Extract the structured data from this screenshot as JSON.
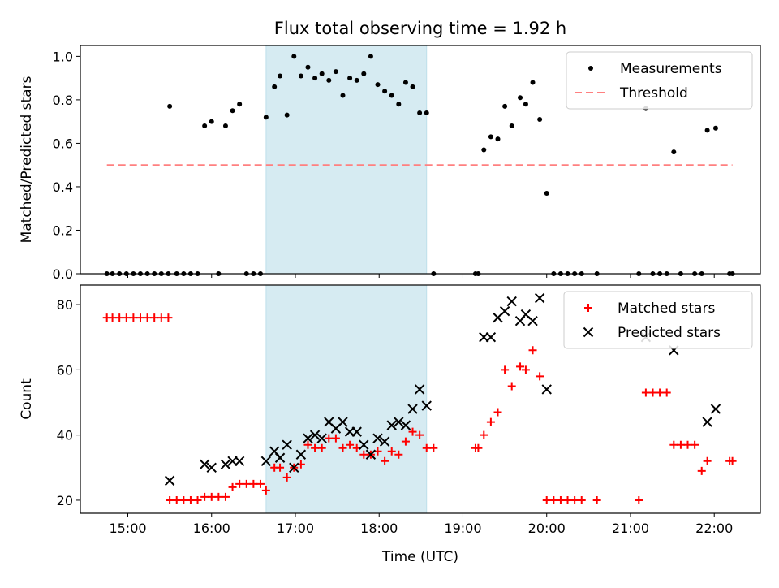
{
  "figure": {
    "title": "Flux total observing time = 1.92 h",
    "shade_color": "#add8e6",
    "shaded_interval": [
      "16:39",
      "18:34"
    ],
    "xlabel": "Time (UTC)",
    "x_tick_labels": [
      "15:00",
      "16:00",
      "17:00",
      "18:00",
      "19:00",
      "20:00",
      "21:00",
      "22:00"
    ]
  },
  "chart_data": [
    {
      "type": "scatter",
      "ylabel": "Matched/Predicted stars",
      "xlim": [
        "14:26",
        "22:33"
      ],
      "ylim": [
        0,
        1.05
      ],
      "y_ticks": [
        "0.0",
        "0.2",
        "0.4",
        "0.6",
        "0.8",
        "1.0"
      ],
      "legend": {
        "position": "top-right",
        "entries": [
          "Measurements",
          "Threshold"
        ]
      },
      "series": [
        {
          "name": "Measurements",
          "color": "#000000",
          "marker": "dot",
          "points": [
            [
              "14:45",
              0
            ],
            [
              "14:49",
              0
            ],
            [
              "14:54",
              0
            ],
            [
              "14:59",
              0
            ],
            [
              "15:04",
              0
            ],
            [
              "15:09",
              0
            ],
            [
              "15:14",
              0
            ],
            [
              "15:19",
              0
            ],
            [
              "15:24",
              0
            ],
            [
              "15:29",
              0
            ],
            [
              "15:30",
              0.77
            ],
            [
              "15:35",
              0
            ],
            [
              "15:40",
              0
            ],
            [
              "15:45",
              0
            ],
            [
              "15:50",
              0
            ],
            [
              "15:55",
              0.68
            ],
            [
              "16:00",
              0.7
            ],
            [
              "16:05",
              0
            ],
            [
              "16:10",
              0.68
            ],
            [
              "16:15",
              0.75
            ],
            [
              "16:20",
              0.78
            ],
            [
              "16:25",
              0
            ],
            [
              "16:30",
              0
            ],
            [
              "16:35",
              0
            ],
            [
              "16:39",
              0.72
            ],
            [
              "16:45",
              0.86
            ],
            [
              "16:49",
              0.91
            ],
            [
              "16:54",
              0.73
            ],
            [
              "16:59",
              1.0
            ],
            [
              "17:04",
              0.91
            ],
            [
              "17:09",
              0.95
            ],
            [
              "17:14",
              0.9
            ],
            [
              "17:19",
              0.92
            ],
            [
              "17:24",
              0.89
            ],
            [
              "17:29",
              0.93
            ],
            [
              "17:34",
              0.82
            ],
            [
              "17:39",
              0.9
            ],
            [
              "17:44",
              0.89
            ],
            [
              "17:49",
              0.92
            ],
            [
              "17:54",
              1.0
            ],
            [
              "17:59",
              0.87
            ],
            [
              "18:04",
              0.84
            ],
            [
              "18:09",
              0.82
            ],
            [
              "18:14",
              0.78
            ],
            [
              "18:19",
              0.88
            ],
            [
              "18:24",
              0.86
            ],
            [
              "18:29",
              0.74
            ],
            [
              "18:34",
              0.74
            ],
            [
              "18:39",
              0
            ],
            [
              "19:09",
              0
            ],
            [
              "19:11",
              0
            ],
            [
              "19:15",
              0.57
            ],
            [
              "19:20",
              0.63
            ],
            [
              "19:25",
              0.62
            ],
            [
              "19:30",
              0.77
            ],
            [
              "19:35",
              0.68
            ],
            [
              "19:41",
              0.81
            ],
            [
              "19:45",
              0.78
            ],
            [
              "19:50",
              0.88
            ],
            [
              "19:55",
              0.71
            ],
            [
              "20:00",
              0.37
            ],
            [
              "20:05",
              0
            ],
            [
              "20:10",
              0
            ],
            [
              "20:15",
              0
            ],
            [
              "20:20",
              0
            ],
            [
              "20:25",
              0
            ],
            [
              "20:36",
              0
            ],
            [
              "21:06",
              0
            ],
            [
              "21:11",
              0.76
            ],
            [
              "21:16",
              0
            ],
            [
              "21:21",
              0
            ],
            [
              "21:26",
              0
            ],
            [
              "21:36",
              0
            ],
            [
              "21:31",
              0.56
            ],
            [
              "21:46",
              0
            ],
            [
              "21:51",
              0
            ],
            [
              "21:55",
              0.66
            ],
            [
              "22:01",
              0.67
            ],
            [
              "22:11",
              0
            ],
            [
              "22:13",
              0
            ]
          ]
        },
        {
          "name": "Threshold",
          "color": "#ff8080",
          "style": "dashed",
          "x": [
            "14:45",
            "22:13"
          ],
          "y": [
            0.5,
            0.5
          ]
        }
      ]
    },
    {
      "type": "scatter",
      "ylabel": "Count",
      "xlim": [
        "14:26",
        "22:33"
      ],
      "ylim": [
        16,
        86
      ],
      "y_ticks": [
        "20",
        "40",
        "60",
        "80"
      ],
      "legend": {
        "position": "top-right",
        "entries": [
          "Matched stars",
          "Predicted stars"
        ]
      },
      "series": [
        {
          "name": "Matched stars",
          "color": "#ff0000",
          "marker": "plus",
          "points": [
            [
              "14:45",
              76
            ],
            [
              "14:49",
              76
            ],
            [
              "14:54",
              76
            ],
            [
              "14:59",
              76
            ],
            [
              "15:04",
              76
            ],
            [
              "15:09",
              76
            ],
            [
              "15:14",
              76
            ],
            [
              "15:19",
              76
            ],
            [
              "15:24",
              76
            ],
            [
              "15:29",
              76
            ],
            [
              "15:30",
              20
            ],
            [
              "15:35",
              20
            ],
            [
              "15:40",
              20
            ],
            [
              "15:45",
              20
            ],
            [
              "15:50",
              20
            ],
            [
              "15:55",
              21
            ],
            [
              "16:00",
              21
            ],
            [
              "16:05",
              21
            ],
            [
              "16:10",
              21
            ],
            [
              "16:15",
              24
            ],
            [
              "16:20",
              25
            ],
            [
              "16:25",
              25
            ],
            [
              "16:30",
              25
            ],
            [
              "16:35",
              25
            ],
            [
              "16:39",
              23
            ],
            [
              "16:45",
              30
            ],
            [
              "16:49",
              30
            ],
            [
              "16:54",
              27
            ],
            [
              "16:59",
              30
            ],
            [
              "17:04",
              31
            ],
            [
              "17:09",
              37
            ],
            [
              "17:14",
              36
            ],
            [
              "17:19",
              36
            ],
            [
              "17:24",
              39
            ],
            [
              "17:29",
              39
            ],
            [
              "17:34",
              36
            ],
            [
              "17:39",
              37
            ],
            [
              "17:44",
              36
            ],
            [
              "17:49",
              34
            ],
            [
              "17:54",
              34
            ],
            [
              "17:59",
              35
            ],
            [
              "18:04",
              32
            ],
            [
              "18:09",
              35
            ],
            [
              "18:14",
              34
            ],
            [
              "18:19",
              38
            ],
            [
              "18:24",
              41
            ],
            [
              "18:29",
              40
            ],
            [
              "18:34",
              36
            ],
            [
              "18:39",
              36
            ],
            [
              "19:09",
              36
            ],
            [
              "19:11",
              36
            ],
            [
              "19:15",
              40
            ],
            [
              "19:20",
              44
            ],
            [
              "19:25",
              47
            ],
            [
              "19:30",
              60
            ],
            [
              "19:35",
              55
            ],
            [
              "19:41",
              61
            ],
            [
              "19:45",
              60
            ],
            [
              "19:50",
              66
            ],
            [
              "19:55",
              58
            ],
            [
              "20:00",
              20
            ],
            [
              "20:05",
              20
            ],
            [
              "20:10",
              20
            ],
            [
              "20:15",
              20
            ],
            [
              "20:20",
              20
            ],
            [
              "20:25",
              20
            ],
            [
              "20:36",
              20
            ],
            [
              "21:06",
              20
            ],
            [
              "21:11",
              53
            ],
            [
              "21:16",
              53
            ],
            [
              "21:21",
              53
            ],
            [
              "21:26",
              53
            ],
            [
              "21:31",
              37
            ],
            [
              "21:36",
              37
            ],
            [
              "21:41",
              37
            ],
            [
              "21:46",
              37
            ],
            [
              "21:51",
              29
            ],
            [
              "21:55",
              32
            ],
            [
              "22:11",
              32
            ],
            [
              "22:13",
              32
            ]
          ]
        },
        {
          "name": "Predicted stars",
          "color": "#000000",
          "marker": "x",
          "points": [
            [
              "15:30",
              26
            ],
            [
              "15:55",
              31
            ],
            [
              "16:00",
              30
            ],
            [
              "16:10",
              31
            ],
            [
              "16:15",
              32
            ],
            [
              "16:20",
              32
            ],
            [
              "16:39",
              32
            ],
            [
              "16:45",
              35
            ],
            [
              "16:49",
              33
            ],
            [
              "16:54",
              37
            ],
            [
              "16:59",
              30
            ],
            [
              "17:04",
              34
            ],
            [
              "17:09",
              39
            ],
            [
              "17:14",
              40
            ],
            [
              "17:19",
              39
            ],
            [
              "17:24",
              44
            ],
            [
              "17:29",
              42
            ],
            [
              "17:34",
              44
            ],
            [
              "17:39",
              41
            ],
            [
              "17:44",
              41
            ],
            [
              "17:49",
              37
            ],
            [
              "17:54",
              34
            ],
            [
              "17:59",
              39
            ],
            [
              "18:04",
              38
            ],
            [
              "18:09",
              43
            ],
            [
              "18:14",
              44
            ],
            [
              "18:19",
              43
            ],
            [
              "18:24",
              48
            ],
            [
              "18:29",
              54
            ],
            [
              "18:34",
              49
            ],
            [
              "19:15",
              70
            ],
            [
              "19:20",
              70
            ],
            [
              "19:25",
              76
            ],
            [
              "19:30",
              78
            ],
            [
              "19:35",
              81
            ],
            [
              "19:41",
              75
            ],
            [
              "19:45",
              77
            ],
            [
              "19:50",
              75
            ],
            [
              "19:55",
              82
            ],
            [
              "20:00",
              54
            ],
            [
              "21:11",
              70
            ],
            [
              "21:31",
              66
            ],
            [
              "21:55",
              44
            ],
            [
              "22:01",
              48
            ]
          ]
        }
      ]
    }
  ]
}
